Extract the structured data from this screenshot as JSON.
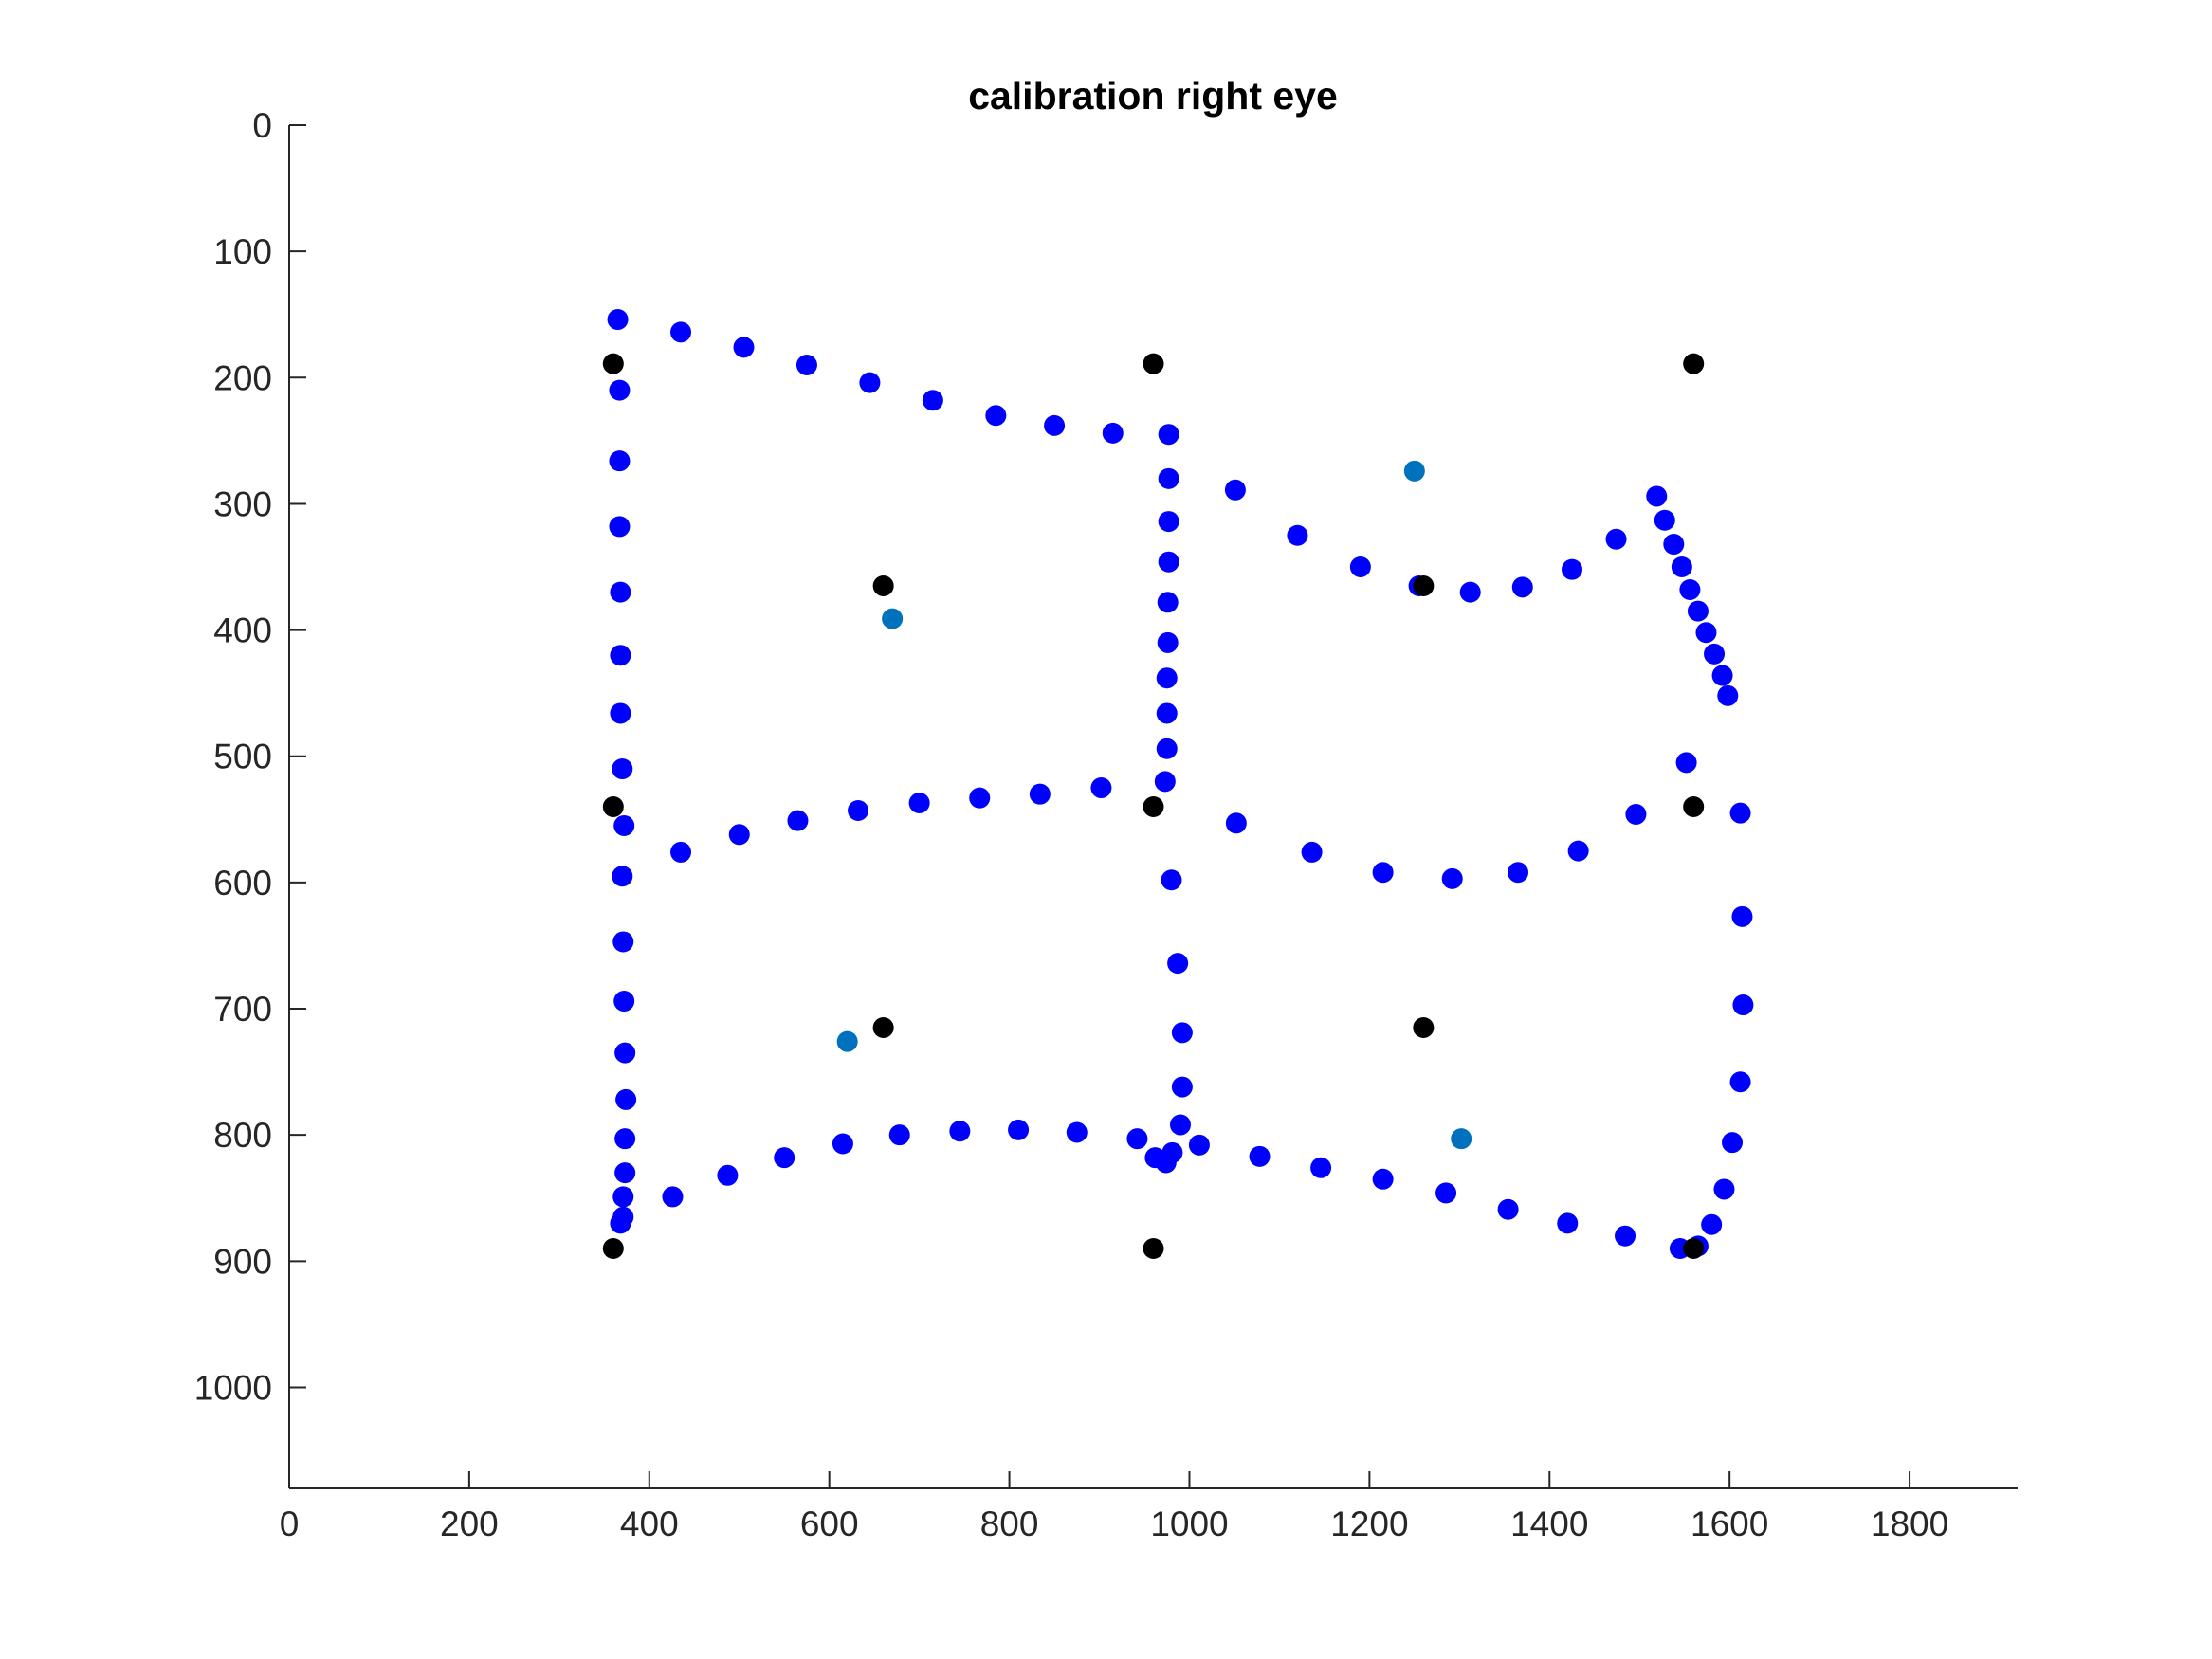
{
  "chart_data": {
    "type": "scatter",
    "title": "calibration right eye",
    "xlabel": "",
    "ylabel": "",
    "xlim": [
      0,
      1920
    ],
    "ylim": [
      0,
      1080
    ],
    "y_reversed": true,
    "grid": false,
    "x_ticks": [
      "0",
      "200",
      "400",
      "600",
      "800",
      "1000",
      "1200",
      "1400",
      "1600",
      "1800"
    ],
    "y_ticks": [
      "0",
      "100",
      "200",
      "300",
      "400",
      "500",
      "600",
      "700",
      "800",
      "900",
      "1000"
    ],
    "x_tick_values": [
      0,
      200,
      400,
      600,
      800,
      1000,
      1200,
      1400,
      1600,
      1800
    ],
    "y_tick_values": [
      0,
      100,
      200,
      300,
      400,
      500,
      600,
      700,
      800,
      900,
      1000
    ],
    "series": [
      {
        "color": "#0000ff",
        "points": [
          [
            365,
            154
          ],
          [
            435,
            164
          ],
          [
            505,
            176
          ],
          [
            575,
            190
          ],
          [
            645,
            204
          ],
          [
            715,
            218
          ],
          [
            785,
            230
          ],
          [
            850,
            238
          ],
          [
            915,
            244
          ],
          [
            977,
            245
          ],
          [
            977,
            280
          ],
          [
            977,
            314
          ],
          [
            977,
            346
          ],
          [
            976,
            378
          ],
          [
            976,
            410
          ],
          [
            975,
            438
          ],
          [
            975,
            466
          ],
          [
            975,
            494
          ],
          [
            973,
            520
          ],
          [
            367,
            210
          ],
          [
            367,
            266
          ],
          [
            367,
            318
          ],
          [
            368,
            370
          ],
          [
            368,
            420
          ],
          [
            368,
            466
          ],
          [
            370,
            510
          ],
          [
            372,
            555
          ],
          [
            370,
            595
          ],
          [
            371,
            647
          ],
          [
            372,
            694
          ],
          [
            373,
            735
          ],
          [
            374,
            772
          ],
          [
            373,
            803
          ],
          [
            373,
            830
          ],
          [
            371,
            849
          ],
          [
            371,
            865
          ],
          [
            368,
            870
          ],
          [
            435,
            576
          ],
          [
            500,
            562
          ],
          [
            565,
            551
          ],
          [
            632,
            543
          ],
          [
            700,
            537
          ],
          [
            767,
            533
          ],
          [
            834,
            530
          ],
          [
            902,
            525
          ],
          [
            1051,
            289
          ],
          [
            1120,
            325
          ],
          [
            1190,
            350
          ],
          [
            1255,
            365
          ],
          [
            1312,
            370
          ],
          [
            1370,
            366
          ],
          [
            1425,
            352
          ],
          [
            1474,
            328
          ],
          [
            1519,
            294
          ],
          [
            1528,
            313
          ],
          [
            1538,
            332
          ],
          [
            1547,
            350
          ],
          [
            1556,
            368
          ],
          [
            1565,
            385
          ],
          [
            1574,
            402
          ],
          [
            1583,
            419
          ],
          [
            1592,
            436
          ],
          [
            1598,
            452
          ],
          [
            1552,
            505
          ],
          [
            1612,
            545
          ],
          [
            1052,
            553
          ],
          [
            1136,
            576
          ],
          [
            1215,
            592
          ],
          [
            1292,
            597
          ],
          [
            1365,
            592
          ],
          [
            1432,
            575
          ],
          [
            1496,
            546
          ],
          [
            980,
            598
          ],
          [
            987,
            664
          ],
          [
            992,
            719
          ],
          [
            992,
            762
          ],
          [
            990,
            792
          ],
          [
            426,
            849
          ],
          [
            487,
            832
          ],
          [
            550,
            818
          ],
          [
            615,
            807
          ],
          [
            678,
            800
          ],
          [
            745,
            797
          ],
          [
            810,
            796
          ],
          [
            875,
            798
          ],
          [
            942,
            803
          ],
          [
            962,
            818
          ],
          [
            974,
            822
          ],
          [
            981,
            814
          ],
          [
            1011,
            808
          ],
          [
            1078,
            817
          ],
          [
            1146,
            826
          ],
          [
            1215,
            835
          ],
          [
            1285,
            846
          ],
          [
            1354,
            859
          ],
          [
            1420,
            870
          ],
          [
            1484,
            880
          ],
          [
            1545,
            890
          ],
          [
            1565,
            888
          ],
          [
            1580,
            871
          ],
          [
            1594,
            843
          ],
          [
            1603,
            806
          ],
          [
            1612,
            758
          ],
          [
            1615,
            697
          ],
          [
            1614,
            627
          ]
        ]
      },
      {
        "color": "#000000",
        "points": [
          [
            360,
            189
          ],
          [
            960,
            189
          ],
          [
            1560,
            189
          ],
          [
            660,
            365
          ],
          [
            1260,
            365
          ],
          [
            360,
            540
          ],
          [
            960,
            540
          ],
          [
            1560,
            540
          ],
          [
            660,
            715
          ],
          [
            1260,
            715
          ],
          [
            360,
            890
          ],
          [
            960,
            890
          ],
          [
            1560,
            890
          ]
        ]
      },
      {
        "color": "#0072bd",
        "points": [
          [
            1250,
            274
          ],
          [
            670,
            391
          ],
          [
            620,
            726
          ],
          [
            1302,
            803
          ]
        ]
      }
    ]
  }
}
